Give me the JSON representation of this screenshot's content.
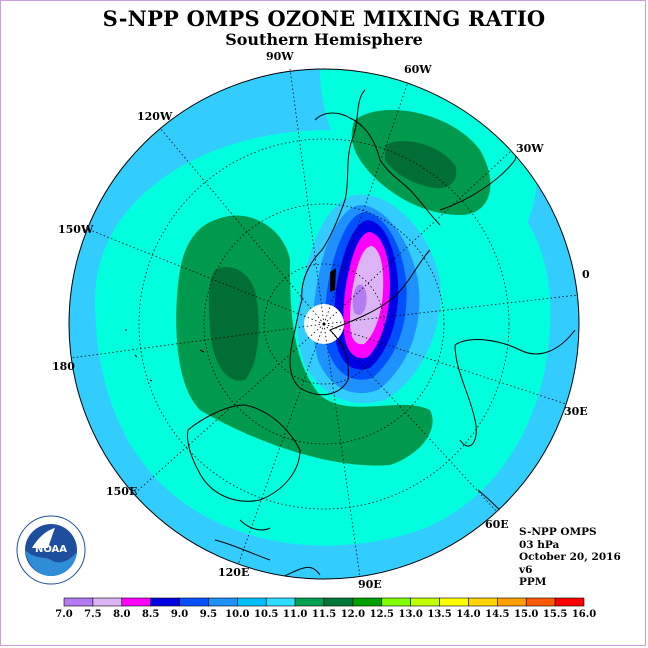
{
  "title": "S-NPP OMPS OZONE MIXING RATIO",
  "subtitle": "Southern Hemisphere",
  "longitude_labels": [
    "90W",
    "60W",
    "30W",
    "0",
    "30E",
    "60E",
    "90E",
    "120E",
    "150E",
    "180",
    "150W",
    "120W"
  ],
  "info": {
    "instrument": "S-NPP OMPS",
    "level": "03 hPa",
    "date": "October 20, 2016",
    "version": "v6",
    "units": "PPM"
  },
  "logo_text": "NOAA",
  "colorbar": {
    "labels": [
      "7.0",
      "7.5",
      "8.0",
      "8.5",
      "9.0",
      "9.5",
      "10.0",
      "10.5",
      "11.0",
      "11.5",
      "12.0",
      "12.5",
      "13.0",
      "13.5",
      "14.0",
      "14.5",
      "15.0",
      "15.5",
      "16.0"
    ],
    "colors": [
      "#b57bf0",
      "#dcb4f5",
      "#ff00ff",
      "#0000e6",
      "#0a50ff",
      "#1e90ff",
      "#00bfff",
      "#2ddcff",
      "#00a050",
      "#007838",
      "#00a000",
      "#80ff00",
      "#c0ff00",
      "#ffff00",
      "#ffd200",
      "#ffa000",
      "#ff5a00",
      "#ff0000",
      "#8b4513"
    ]
  },
  "map_legend_colors": {
    "ocean_background": "#33ccff",
    "band_10_5": "#2ddcff",
    "band_11_0": "#00ffdd",
    "band_11_5": "#009a4e",
    "band_12_0": "#006e36",
    "band_9_5": "#1e90ff",
    "band_9_0": "#0050ff",
    "band_8_5": "#0000e6",
    "band_8_0": "#ff00ff",
    "band_7_5": "#dcb4f5",
    "band_7_0": "#b57bf0"
  }
}
